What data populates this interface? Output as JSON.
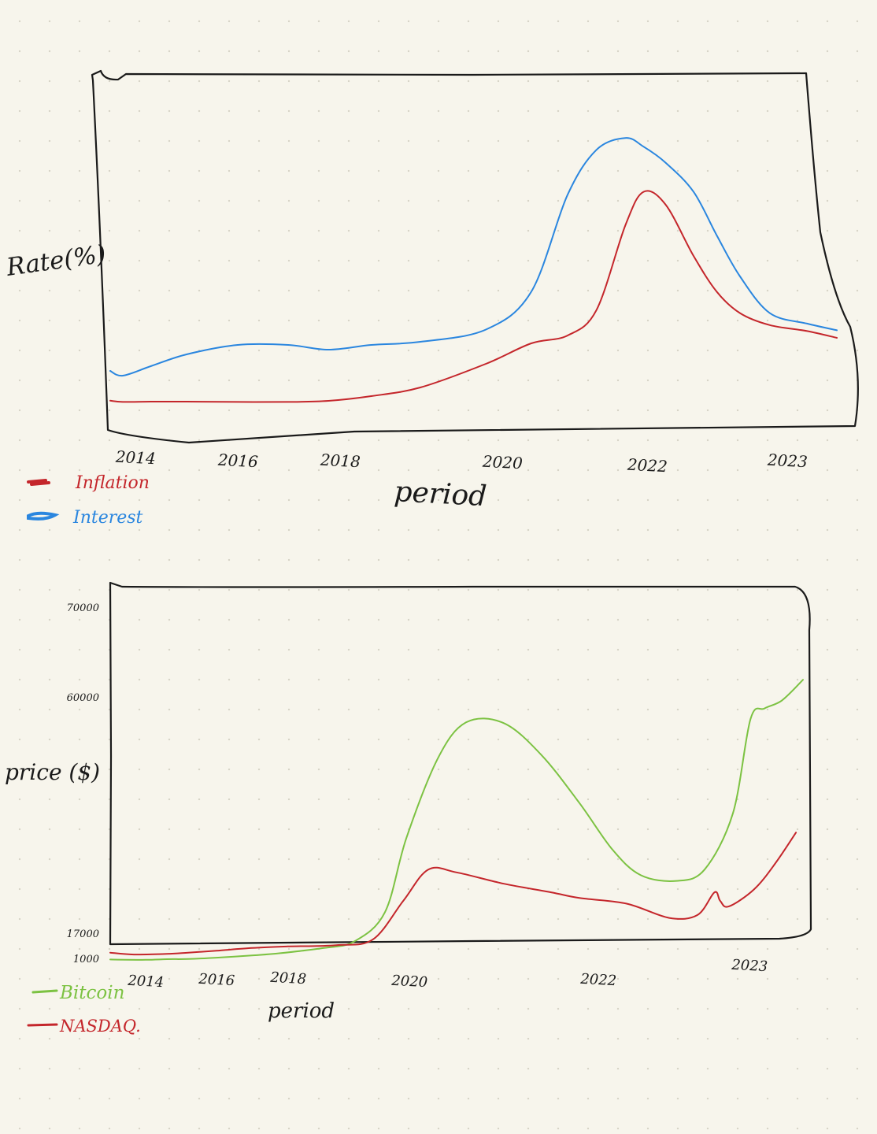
{
  "colors": {
    "inflation": "#c4262b",
    "interest": "#2a86df",
    "bitcoin": "#7cc242",
    "nasdaq": "#c4262b",
    "ink": "#1a1a1a",
    "background": "#f7f5ec"
  },
  "chart_data": [
    {
      "type": "line",
      "title": "",
      "xlabel": "period",
      "ylabel": "Rate(%)",
      "x_tick_labels": [
        "2014",
        "2016",
        "2018",
        "2020",
        "2022",
        "2023"
      ],
      "legend_position": "bottom-left",
      "grid": false,
      "y_ticks_printed": false,
      "series": [
        {
          "name": "Inflation",
          "x": [
            2013.4,
            2013.7,
            2014.3,
            2015.0,
            2016.0,
            2017.0,
            2017.8,
            2018.4,
            2019.0,
            2019.8,
            2020.4,
            2020.9,
            2021.3,
            2021.7,
            2021.95,
            2022.2,
            2022.5,
            2022.75,
            2023.0,
            2023.4,
            2023.9,
            2024.3
          ],
          "y": [
            0.46,
            0.38,
            0.4,
            0.4,
            0.38,
            0.38,
            0.45,
            0.75,
            1.1,
            1.6,
            2.2,
            3.1,
            4.8,
            6.6,
            7.4,
            7.0,
            6.0,
            5.3,
            4.6,
            3.8,
            3.4,
            2.9
          ]
        },
        {
          "name": "Interest",
          "x": [
            2013.4,
            2013.7,
            2014.3,
            2015.0,
            2016.0,
            2017.0,
            2017.8,
            2018.4,
            2019.0,
            2019.8,
            2020.4,
            2020.9,
            2021.3,
            2021.7,
            2021.95,
            2022.2,
            2022.5,
            2022.75,
            2023.0,
            2023.4,
            2023.9,
            2024.3
          ],
          "y": [
            1.45,
            1.35,
            1.55,
            1.8,
            2.0,
            2.0,
            1.9,
            2.0,
            2.4,
            3.5,
            5.3,
            7.3,
            8.7,
            9.1,
            8.8,
            8.3,
            7.4,
            6.4,
            5.6,
            4.6,
            3.9,
            3.45
          ]
        }
      ]
    },
    {
      "type": "line",
      "title": "",
      "xlabel": "period",
      "ylabel": "price ($)",
      "x_tick_labels": [
        "2014",
        "2016",
        "2018",
        "2020",
        "2022",
        "2023"
      ],
      "y_tick_labels": [
        "1000",
        "17000",
        "60000",
        "70000"
      ],
      "ylim": [
        0,
        70000
      ],
      "legend_position": "bottom-left",
      "grid": false,
      "series": [
        {
          "name": "Bitcoin",
          "x": [
            2013.4,
            2014.0,
            2014.6,
            2015.2,
            2016.0,
            2017.0,
            2017.8,
            2018.6,
            2019.1,
            2019.6,
            2019.95,
            2020.3,
            2020.6,
            2021.0,
            2021.4,
            2021.8,
            2022.1,
            2022.3,
            2022.55,
            2022.75,
            2022.95,
            2023.15,
            2023.35,
            2023.6,
            2023.9
          ],
          "y": [
            900,
            800,
            1000,
            1100,
            1800,
            3000,
            4200,
            7000,
            10500,
            20000,
            33000,
            45000,
            50800,
            50500,
            45500,
            38500,
            31000,
            26500,
            25500,
            27500,
            37000,
            52000,
            56000,
            59000,
            62000
          ]
        },
        {
          "name": "NASDAQ.",
          "x": [
            2013.4,
            2013.8,
            2014.6,
            2015.2,
            2016.0,
            2017.0,
            2018.0,
            2018.8,
            2019.4,
            2019.9,
            2020.2,
            2020.5,
            2021.0,
            2021.5,
            2021.8,
            2022.2,
            2022.5,
            2022.7,
            2022.82,
            2022.86,
            2022.92,
            2023.2,
            2023.5,
            2023.8
          ],
          "y": [
            4500,
            3500,
            3800,
            4500,
            5500,
            7000,
            7800,
            8500,
            11500,
            22000,
            27500,
            27000,
            25000,
            23500,
            22500,
            21500,
            19000,
            19500,
            23500,
            22000,
            21000,
            24000,
            28500,
            34000
          ]
        }
      ]
    }
  ]
}
